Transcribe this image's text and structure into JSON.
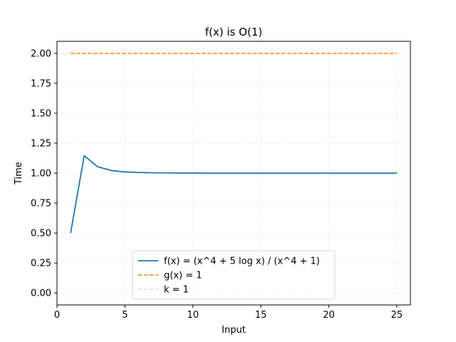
{
  "chart_data": {
    "type": "line",
    "title": "f(x) is O(1)",
    "xlabel": "Input",
    "ylabel": "Time",
    "xlim": [
      0,
      26
    ],
    "ylim": [
      -0.1,
      2.1
    ],
    "xticks": [
      0,
      5,
      10,
      15,
      20,
      25
    ],
    "yticks": [
      0.0,
      0.25,
      0.5,
      0.75,
      1.0,
      1.25,
      1.5,
      1.75,
      2.0
    ],
    "xtick_labels": [
      "0",
      "5",
      "10",
      "15",
      "20",
      "25"
    ],
    "ytick_labels": [
      "0.00",
      "0.25",
      "0.50",
      "0.75",
      "1.00",
      "1.25",
      "1.50",
      "1.75",
      "2.00"
    ],
    "grid": true,
    "legend_position": "lower center",
    "series": [
      {
        "name": "f(x) = (x^4 + 5 log x) / (x^4 + 1)",
        "style": "solid",
        "color": "#1f77b4",
        "x": [
          1,
          2,
          3,
          4,
          5,
          6,
          7,
          8,
          9,
          10,
          11,
          12,
          13,
          14,
          15,
          16,
          17,
          18,
          19,
          20,
          21,
          22,
          23,
          24,
          25
        ],
        "y": [
          0.5,
          1.145,
          1.053,
          1.022,
          1.01,
          1.006,
          1.003,
          1.002,
          1.001,
          1.001,
          1.0,
          1.0,
          1.0,
          1.0,
          1.0,
          1.0,
          1.0,
          1.0,
          1.0,
          1.0,
          1.0,
          1.0,
          1.0,
          1.0,
          1.0
        ]
      },
      {
        "name": "g(x) = 1",
        "style": "dashed",
        "color": "#ff7f0e",
        "x": [
          1,
          25
        ],
        "y": [
          2.0,
          2.0
        ]
      },
      {
        "name": "k = 1",
        "style": "dashed",
        "color": "#c8c8c8",
        "x": [],
        "y": []
      }
    ]
  }
}
